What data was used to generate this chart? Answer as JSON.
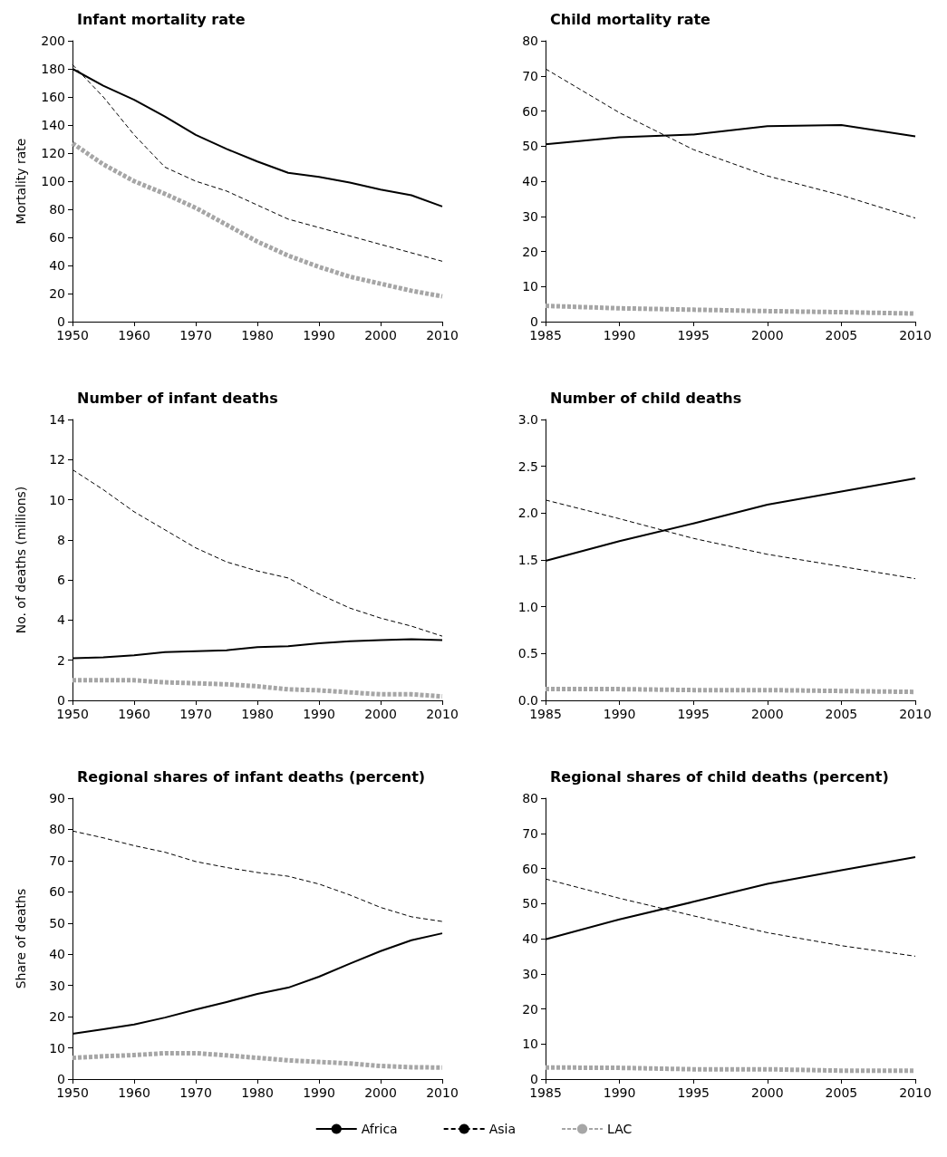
{
  "chart_data": [
    {
      "type": "line",
      "title": "Infant mortality rate",
      "ylabel": "Mortality rate",
      "x": [
        1950,
        1955,
        1960,
        1965,
        1970,
        1975,
        1980,
        1985,
        1990,
        1995,
        2000,
        2005,
        2010
      ],
      "xlim": [
        1950,
        2010
      ],
      "xticks": [
        1950,
        1960,
        1970,
        1980,
        1990,
        2000,
        2010
      ],
      "ylim": [
        0,
        200
      ],
      "yticks": [
        0,
        20,
        40,
        60,
        80,
        100,
        120,
        140,
        160,
        180,
        200
      ],
      "grid": false,
      "marker": "none",
      "series": [
        {
          "color": "#000000",
          "line_style": "solid",
          "values": [
            180,
            168,
            158,
            146,
            133,
            123,
            114,
            106,
            103,
            99,
            94,
            90,
            82
          ]
        },
        {
          "color": "#000000",
          "line_style": "dashed",
          "values": [
            183,
            160,
            133,
            110,
            100,
            93,
            83,
            73,
            67,
            61,
            55,
            49,
            43
          ]
        },
        {
          "color": "#a6a6a6",
          "line_style": "dotted",
          "values": [
            127,
            112,
            100,
            91,
            81,
            69,
            57,
            47,
            39,
            32,
            27,
            22,
            18
          ]
        }
      ]
    },
    {
      "type": "line",
      "title": "Child mortality rate",
      "x": [
        1985,
        1990,
        1995,
        2000,
        2005,
        2010
      ],
      "xlim": [
        1985,
        2010
      ],
      "xticks": [
        1985,
        1990,
        1995,
        2000,
        2005,
        2010
      ],
      "ylim": [
        0,
        80
      ],
      "yticks": [
        0,
        10,
        20,
        30,
        40,
        50,
        60,
        70,
        80
      ],
      "grid": false,
      "marker": "none",
      "series": [
        {
          "color": "#000000",
          "line_style": "solid",
          "values": [
            50.5,
            52.5,
            53.3,
            55.7,
            56,
            52.8
          ]
        },
        {
          "color": "#000000",
          "line_style": "dashed",
          "values": [
            72,
            59.5,
            49,
            41.5,
            36,
            29.5
          ]
        },
        {
          "color": "#a6a6a6",
          "line_style": "dotted",
          "values": [
            4.5,
            3.8,
            3.4,
            3.0,
            2.7,
            2.3
          ]
        }
      ]
    },
    {
      "type": "line",
      "title": "Number of infant deaths",
      "ylabel": "No. of deaths (millions)",
      "x": [
        1950,
        1955,
        1960,
        1965,
        1970,
        1975,
        1980,
        1985,
        1990,
        1995,
        2000,
        2005,
        2010
      ],
      "xlim": [
        1950,
        2010
      ],
      "xticks": [
        1950,
        1960,
        1970,
        1980,
        1990,
        2000,
        2010
      ],
      "ylim": [
        0,
        14
      ],
      "yticks": [
        0,
        2,
        4,
        6,
        8,
        10,
        12,
        14
      ],
      "grid": false,
      "marker": "none",
      "series": [
        {
          "color": "#000000",
          "line_style": "solid",
          "values": [
            2.1,
            2.15,
            2.25,
            2.4,
            2.45,
            2.5,
            2.65,
            2.7,
            2.85,
            2.95,
            3.0,
            3.05,
            3.0
          ]
        },
        {
          "color": "#000000",
          "line_style": "dashed",
          "values": [
            11.5,
            10.5,
            9.4,
            8.5,
            7.6,
            6.9,
            6.45,
            6.1,
            5.3,
            4.6,
            4.1,
            3.7,
            3.2
          ]
        },
        {
          "color": "#a6a6a6",
          "line_style": "dotted",
          "values": [
            1.0,
            1.0,
            1.0,
            0.9,
            0.85,
            0.8,
            0.7,
            0.55,
            0.5,
            0.4,
            0.3,
            0.3,
            0.2
          ]
        }
      ]
    },
    {
      "type": "line",
      "title": "Number of child deaths",
      "x": [
        1985,
        1990,
        1995,
        2000,
        2005,
        2010
      ],
      "xlim": [
        1985,
        2010
      ],
      "xticks": [
        1985,
        1990,
        1995,
        2000,
        2005,
        2010
      ],
      "ylim": [
        0,
        3
      ],
      "yticks": [
        {
          "value": 0,
          "label": "0.0"
        },
        {
          "value": 0.5,
          "label": "0.5"
        },
        {
          "value": 1,
          "label": "1.0"
        },
        {
          "value": 1.5,
          "label": "1.5"
        },
        {
          "value": 2,
          "label": "2.0"
        },
        {
          "value": 2.5,
          "label": "2.5"
        },
        {
          "value": 3,
          "label": "3.0"
        }
      ],
      "grid": false,
      "marker": "none",
      "series": [
        {
          "color": "#000000",
          "line_style": "solid",
          "values": [
            1.49,
            1.7,
            1.89,
            2.09,
            2.23,
            2.37
          ]
        },
        {
          "color": "#000000",
          "line_style": "dashed",
          "values": [
            2.14,
            1.94,
            1.73,
            1.56,
            1.43,
            1.3
          ]
        },
        {
          "color": "#a6a6a6",
          "line_style": "dotted",
          "values": [
            0.12,
            0.12,
            0.11,
            0.11,
            0.1,
            0.09
          ]
        }
      ]
    },
    {
      "type": "line",
      "title": "Regional shares of infant deaths (percent)",
      "ylabel": "Share of deaths",
      "x": [
        1950,
        1955,
        1960,
        1965,
        1970,
        1975,
        1980,
        1985,
        1990,
        1995,
        2000,
        2005,
        2010
      ],
      "xlim": [
        1950,
        2010
      ],
      "xticks": [
        1950,
        1960,
        1970,
        1980,
        1990,
        2000,
        2010
      ],
      "ylim": [
        0,
        90
      ],
      "yticks": [
        0,
        10,
        20,
        30,
        40,
        50,
        60,
        70,
        80,
        90
      ],
      "grid": false,
      "marker": "none",
      "series": [
        {
          "color": "#000000",
          "line_style": "solid",
          "values": [
            14.5,
            16,
            17.5,
            19.7,
            22.3,
            24.7,
            27.3,
            29.3,
            32.8,
            37,
            41,
            44.5,
            46.7
          ]
        },
        {
          "color": "#000000",
          "line_style": "dashed",
          "values": [
            79.5,
            77.3,
            74.8,
            72.7,
            69.7,
            67.8,
            66.2,
            65,
            62.5,
            59,
            55,
            52,
            50.5
          ]
        },
        {
          "color": "#a6a6a6",
          "line_style": "dotted",
          "values": [
            6.8,
            7.3,
            7.7,
            8.3,
            8.3,
            7.6,
            6.8,
            6.0,
            5.5,
            5.0,
            4.2,
            3.8,
            3.7
          ]
        }
      ]
    },
    {
      "type": "line",
      "title": "Regional shares of child deaths (percent)",
      "x": [
        1985,
        1990,
        1995,
        2000,
        2005,
        2010
      ],
      "xlim": [
        1985,
        2010
      ],
      "xticks": [
        1985,
        1990,
        1995,
        2000,
        2005,
        2010
      ],
      "ylim": [
        0,
        80
      ],
      "yticks": [
        0,
        10,
        20,
        30,
        40,
        50,
        60,
        70,
        80
      ],
      "grid": false,
      "marker": "none",
      "legend": "bottom",
      "series": [
        {
          "name": "Africa",
          "color": "#000000",
          "line_style": "solid",
          "values": [
            39.8,
            45.5,
            50.5,
            55.6,
            59.5,
            63.2
          ]
        },
        {
          "name": "Asia",
          "color": "#000000",
          "line_style": "dashed",
          "values": [
            57,
            51.5,
            46.5,
            41.7,
            38,
            35
          ]
        },
        {
          "name": "LAC",
          "color": "#a6a6a6",
          "line_style": "dotted",
          "values": [
            3.3,
            3.2,
            2.8,
            2.8,
            2.4,
            2.4
          ]
        }
      ]
    }
  ]
}
